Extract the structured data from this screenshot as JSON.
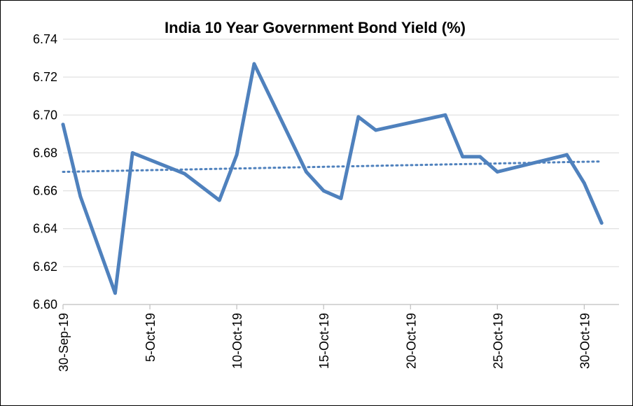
{
  "chart_data": {
    "type": "line",
    "title": "India 10 Year Government Bond Yield (%)",
    "xlabel": "",
    "ylabel": "",
    "ylim": [
      6.6,
      6.74
    ],
    "y_ticks": [
      "6.60",
      "6.62",
      "6.64",
      "6.66",
      "6.68",
      "6.70",
      "6.72",
      "6.74"
    ],
    "x_range": [
      "2019-09-30",
      "2019-11-01"
    ],
    "x_ticks": [
      {
        "date": "2019-09-30",
        "label": "30-Sep-19"
      },
      {
        "date": "2019-10-05",
        "label": "5-Oct-19"
      },
      {
        "date": "2019-10-10",
        "label": "10-Oct-19"
      },
      {
        "date": "2019-10-15",
        "label": "15-Oct-19"
      },
      {
        "date": "2019-10-20",
        "label": "20-Oct-19"
      },
      {
        "date": "2019-10-25",
        "label": "25-Oct-19"
      },
      {
        "date": "2019-10-30",
        "label": "30-Oct-19"
      }
    ],
    "grid": true,
    "series": [
      {
        "color": "#4f81bd",
        "points": [
          {
            "x": "2019-09-30",
            "y": 6.695
          },
          {
            "x": "2019-10-01",
            "y": 6.657
          },
          {
            "x": "2019-10-03",
            "y": 6.606
          },
          {
            "x": "2019-10-04",
            "y": 6.68
          },
          {
            "x": "2019-10-07",
            "y": 6.669
          },
          {
            "x": "2019-10-09",
            "y": 6.655
          },
          {
            "x": "2019-10-10",
            "y": 6.679
          },
          {
            "x": "2019-10-11",
            "y": 6.727
          },
          {
            "x": "2019-10-14",
            "y": 6.67
          },
          {
            "x": "2019-10-15",
            "y": 6.66
          },
          {
            "x": "2019-10-16",
            "y": 6.656
          },
          {
            "x": "2019-10-17",
            "y": 6.699
          },
          {
            "x": "2019-10-18",
            "y": 6.692
          },
          {
            "x": "2019-10-22",
            "y": 6.7
          },
          {
            "x": "2019-10-23",
            "y": 6.678
          },
          {
            "x": "2019-10-24",
            "y": 6.678
          },
          {
            "x": "2019-10-25",
            "y": 6.67
          },
          {
            "x": "2019-10-29",
            "y": 6.679
          },
          {
            "x": "2019-10-30",
            "y": 6.664
          },
          {
            "x": "2019-10-31",
            "y": 6.643
          }
        ]
      }
    ],
    "trendline": {
      "type": "linear",
      "style": "dotted",
      "color": "#4f81bd",
      "start": {
        "x": "2019-09-30",
        "y": 6.67
      },
      "end": {
        "x": "2019-10-31",
        "y": 6.6755
      }
    }
  }
}
